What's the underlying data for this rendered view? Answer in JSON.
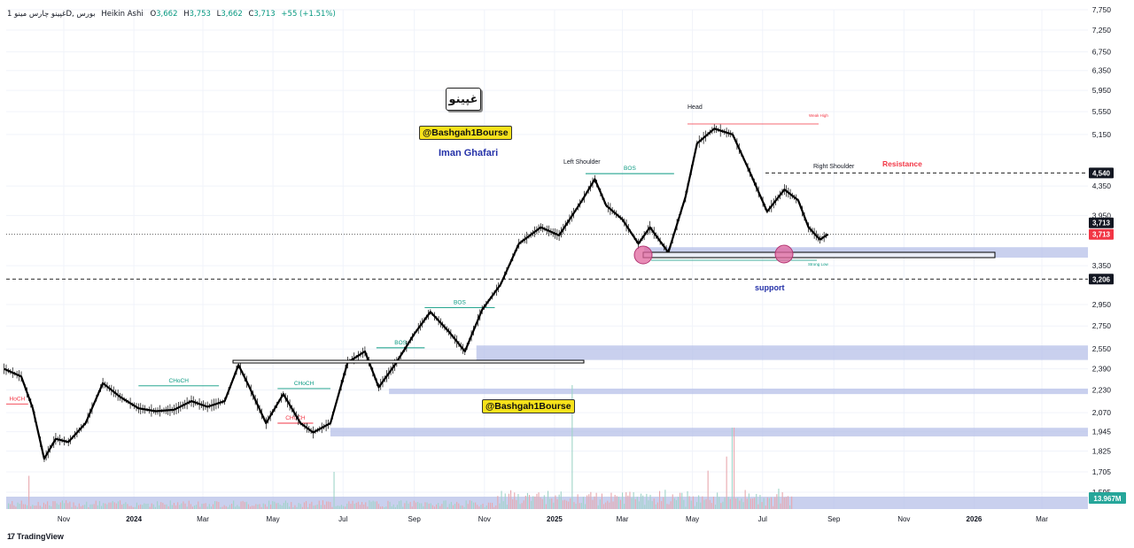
{
  "header": {
    "symbol": "1 غپینو چارس مینو",
    "timeframe": "D",
    "exchange": "بورس",
    "chart_style": "Heikin Ashi",
    "open": "3,662",
    "high": "3,753",
    "low": "3,662",
    "close": "3,713",
    "change": "+55 (+1.51%)"
  },
  "annotations": {
    "stamp": "غپینو",
    "tag_top": "@Bashgah1Bourse",
    "tag_mid": "@Bashgah1Bourse",
    "author": "Iman Ghafari",
    "head": "Head",
    "left_shoulder": "Left Shoulder",
    "right_shoulder": "Right Shoulder",
    "resistance": "Resistance",
    "support": "support",
    "weak_high": "Weak High",
    "strong_low": "Strong Low"
  },
  "brand": "TradingView",
  "colors": {
    "price": "#000000",
    "zone": "#b7c0e8",
    "bos": "#089981",
    "choch_red": "#f23645",
    "resistance": "#f23645",
    "support": "#2431a8",
    "volume_up": "#e8a7ae",
    "volume_down": "#9fd4c8",
    "label_dark": "#131722"
  },
  "chart_data": {
    "type": "line",
    "style": "Heikin Ashi",
    "yscale": "log",
    "ylim": [
      1595,
      7750
    ],
    "y_ticks": [
      1595,
      1705,
      1825,
      1945,
      2070,
      2230,
      2390,
      2550,
      2750,
      2950,
      3350,
      3950,
      4350,
      5150,
      5550,
      5950,
      6350,
      6750,
      7250,
      7750
    ],
    "x_tick_labels": [
      "Nov",
      "2024",
      "Mar",
      "May",
      "Jul",
      "Sep",
      "Nov",
      "2025",
      "Mar",
      "May",
      "Jul",
      "Sep",
      "Nov",
      "2026",
      "Mar"
    ],
    "x_tick_dates": [
      "2023-11-01",
      "2024-01-01",
      "2024-03-01",
      "2024-05-01",
      "2024-07-01",
      "2024-09-01",
      "2024-11-01",
      "2025-01-01",
      "2025-03-01",
      "2025-05-01",
      "2025-07-01",
      "2025-09-01",
      "2025-11-01",
      "2026-01-01",
      "2026-03-01"
    ],
    "series": [
      {
        "x": [
          "2023-09-10",
          "2023-09-25",
          "2023-10-05",
          "2023-10-15",
          "2023-10-25",
          "2023-11-05",
          "2023-11-20",
          "2023-12-05",
          "2023-12-20",
          "2024-01-05",
          "2024-01-20",
          "2024-02-05",
          "2024-02-20",
          "2024-03-05",
          "2024-03-20",
          "2024-04-01",
          "2024-04-10",
          "2024-04-25",
          "2024-05-10",
          "2024-05-25",
          "2024-06-05",
          "2024-06-20",
          "2024-07-05",
          "2024-07-20",
          "2024-08-01",
          "2024-08-15",
          "2024-09-01",
          "2024-09-15",
          "2024-10-01",
          "2024-10-15",
          "2024-10-30",
          "2024-11-15",
          "2024-12-01",
          "2024-12-20",
          "2025-01-05",
          "2025-01-25",
          "2025-02-05",
          "2025-02-15",
          "2025-03-01",
          "2025-03-15",
          "2025-03-25",
          "2025-04-10",
          "2025-04-25",
          "2025-05-05",
          "2025-05-20",
          "2025-06-05",
          "2025-06-20",
          "2025-07-05",
          "2025-07-20",
          "2025-08-01",
          "2025-08-10",
          "2025-08-20",
          "2025-08-27"
        ],
        "values": [
          2390,
          2330,
          2100,
          1780,
          1900,
          1880,
          2000,
          2280,
          2180,
          2100,
          2080,
          2090,
          2150,
          2110,
          2150,
          2420,
          2260,
          2000,
          2200,
          2000,
          1940,
          2000,
          2440,
          2530,
          2250,
          2420,
          2680,
          2880,
          2700,
          2530,
          2900,
          3150,
          3600,
          3800,
          3700,
          4150,
          4450,
          4080,
          3900,
          3600,
          3800,
          3500,
          4200,
          5000,
          5250,
          5150,
          4550,
          4000,
          4300,
          4150,
          3800,
          3650,
          3713
        ]
      }
    ],
    "volume": {
      "last": "13.967M"
    },
    "price_labels": [
      {
        "text": "4,540",
        "value": 4540
      },
      {
        "text": "3,713",
        "value": 3713
      },
      {
        "text": "3,713",
        "value": 3713
      },
      {
        "text": "3,206",
        "value": 3206
      }
    ],
    "levels": {
      "resistance": 4540,
      "support": 3206,
      "current": 3713
    },
    "zones": [
      {
        "from": "2025-03-20",
        "to": "2026-06-01",
        "low": 3440,
        "high": 3560
      },
      {
        "from": "2024-10-25",
        "to": "2026-06-01",
        "low": 2460,
        "high": 2580
      },
      {
        "from": "2024-08-10",
        "to": "2026-06-01",
        "low": 2200,
        "high": 2240
      },
      {
        "from": "2024-06-20",
        "to": "2026-06-01",
        "low": 1915,
        "high": 1970
      }
    ],
    "markers": [
      {
        "text": "BOS",
        "kind": "bos",
        "value": 4530,
        "from": "2025-01-28",
        "to": "2025-04-15"
      },
      {
        "text": "BOS",
        "kind": "bos",
        "value": 2920,
        "from": "2024-09-10",
        "to": "2024-11-10"
      },
      {
        "text": "BOS",
        "kind": "bos",
        "value": 2560,
        "from": "2024-07-30",
        "to": "2024-09-10"
      },
      {
        "text": "CHoCH",
        "kind": "bos",
        "value": 2260,
        "from": "2024-01-05",
        "to": "2024-03-15"
      },
      {
        "text": "CHoCH",
        "kind": "bos",
        "value": 2240,
        "from": "2024-05-05",
        "to": "2024-06-20"
      },
      {
        "text": "CHoCH",
        "kind": "choch",
        "value": 2000,
        "from": "2024-05-05",
        "to": "2024-06-05"
      },
      {
        "text": "HoCH",
        "kind": "choch",
        "value": 2130,
        "from": "2023-09-05",
        "to": "2023-10-01"
      }
    ]
  }
}
